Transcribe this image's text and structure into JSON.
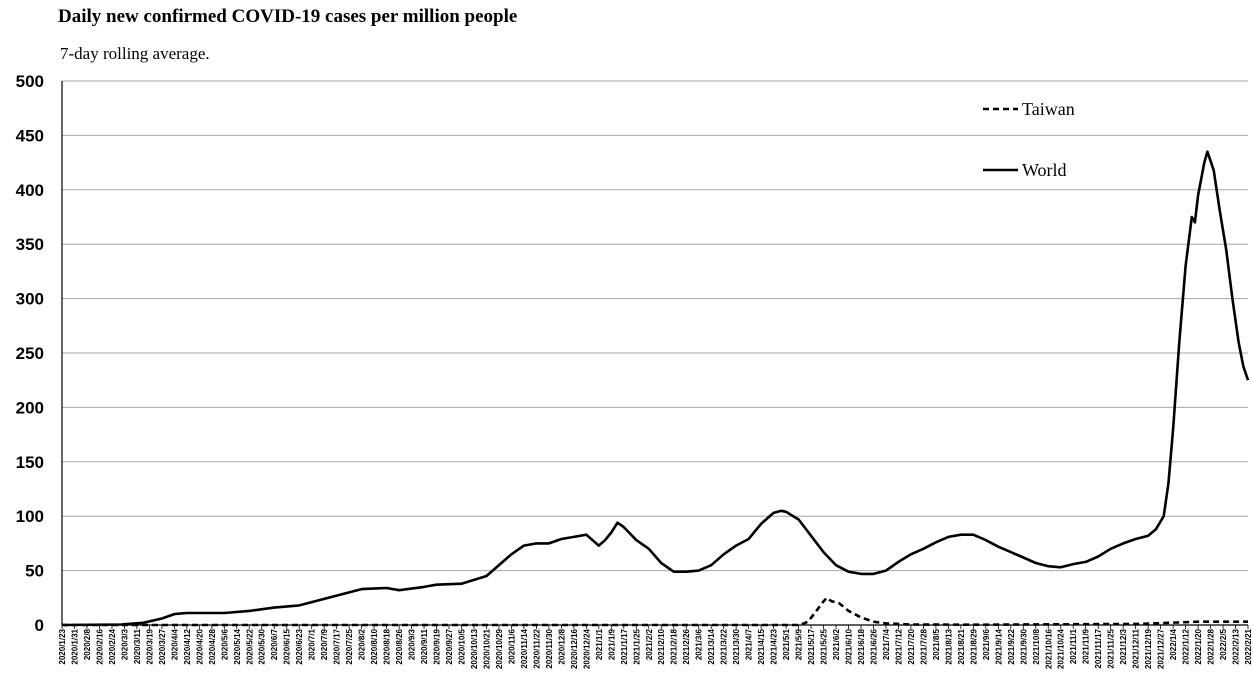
{
  "chart_data": {
    "type": "line",
    "title": "Daily new confirmed COVID-19 cases per million people",
    "subtitle": "7-day rolling average.",
    "xlabel": "",
    "ylabel": "",
    "ylim": [
      0,
      500
    ],
    "y_ticks": [
      0,
      50,
      100,
      150,
      200,
      250,
      300,
      350,
      400,
      450,
      500
    ],
    "grid": true,
    "legend_position": "top-right",
    "x_start": "2020-01-23",
    "x_end": "2022-02-21",
    "x_tick_labels": [
      "2020/1/23",
      "2020/1/31",
      "2020/2/8",
      "2020/2/16",
      "2020/2/24",
      "2020/3/3",
      "2020/3/11",
      "2020/3/19",
      "2020/3/27",
      "2020/4/4",
      "2020/4/12",
      "2020/4/20",
      "2020/4/28",
      "2020/5/6",
      "2020/5/14",
      "2020/5/22",
      "2020/5/30",
      "2020/6/7",
      "2020/6/15",
      "2020/6/23",
      "2020/7/1",
      "2020/7/9",
      "2020/7/17",
      "2020/7/25",
      "2020/8/2",
      "2020/8/10",
      "2020/8/18",
      "2020/8/26",
      "2020/9/3",
      "2020/9/11",
      "2020/9/19",
      "2020/9/27",
      "2020/10/5",
      "2020/10/13",
      "2020/10/21",
      "2020/10/29",
      "2020/11/6",
      "2020/11/14",
      "2020/11/22",
      "2020/11/30",
      "2020/12/8",
      "2020/12/16",
      "2020/12/24",
      "2021/1/1",
      "2021/1/9",
      "2021/1/17",
      "2021/1/25",
      "2021/2/2",
      "2021/2/10",
      "2021/2/18",
      "2021/2/26",
      "2021/3/6",
      "2021/3/14",
      "2021/3/22",
      "2021/3/30",
      "2021/4/7",
      "2021/4/15",
      "2021/4/23",
      "2021/5/1",
      "2021/5/9",
      "2021/5/17",
      "2021/5/25",
      "2021/6/2",
      "2021/6/10",
      "2021/6/18",
      "2021/6/26",
      "2021/7/4",
      "2021/7/12",
      "2021/7/20",
      "2021/7/28",
      "2021/8/5",
      "2021/8/13",
      "2021/8/21",
      "2021/8/29",
      "2021/9/6",
      "2021/9/14",
      "2021/9/22",
      "2021/9/30",
      "2021/10/8",
      "2021/10/16",
      "2021/10/24",
      "2021/11/1",
      "2021/11/9",
      "2021/11/17",
      "2021/11/25",
      "2021/12/3",
      "2021/12/11",
      "2021/12/19",
      "2021/12/27",
      "2022/1/4",
      "2022/1/12",
      "2022/1/20",
      "2022/1/28",
      "2022/2/5",
      "2022/2/13",
      "2022/2/21"
    ],
    "series": [
      {
        "name": "Taiwan",
        "style": "dashed",
        "color": "#000000",
        "points": [
          [
            "2020-01-23",
            0
          ],
          [
            "2021-05-10",
            0
          ],
          [
            "2021-05-15",
            3
          ],
          [
            "2021-05-20",
            12
          ],
          [
            "2021-05-24",
            20
          ],
          [
            "2021-05-27",
            25
          ],
          [
            "2021-05-30",
            22
          ],
          [
            "2021-06-04",
            20
          ],
          [
            "2021-06-10",
            13
          ],
          [
            "2021-06-18",
            7
          ],
          [
            "2021-06-26",
            3
          ],
          [
            "2021-07-04",
            1.5
          ],
          [
            "2021-07-20",
            0.5
          ],
          [
            "2021-09-01",
            0.3
          ],
          [
            "2021-12-15",
            1
          ],
          [
            "2022-01-01",
            2
          ],
          [
            "2022-01-20",
            3
          ],
          [
            "2022-02-21",
            3
          ]
        ]
      },
      {
        "name": "World",
        "style": "solid",
        "color": "#000000",
        "points": [
          [
            "2020-01-23",
            0
          ],
          [
            "2020-03-01",
            0.5
          ],
          [
            "2020-03-15",
            2
          ],
          [
            "2020-03-27",
            6
          ],
          [
            "2020-04-04",
            10
          ],
          [
            "2020-04-12",
            11
          ],
          [
            "2020-04-20",
            11
          ],
          [
            "2020-05-06",
            11
          ],
          [
            "2020-05-22",
            13
          ],
          [
            "2020-06-07",
            16
          ],
          [
            "2020-06-23",
            18
          ],
          [
            "2020-07-09",
            24
          ],
          [
            "2020-07-25",
            30
          ],
          [
            "2020-08-02",
            33
          ],
          [
            "2020-08-18",
            34
          ],
          [
            "2020-08-26",
            32
          ],
          [
            "2020-09-11",
            35
          ],
          [
            "2020-09-19",
            37
          ],
          [
            "2020-10-05",
            38
          ],
          [
            "2020-10-21",
            45
          ],
          [
            "2020-11-06",
            65
          ],
          [
            "2020-11-14",
            73
          ],
          [
            "2020-11-22",
            75
          ],
          [
            "2020-11-30",
            75
          ],
          [
            "2020-12-08",
            79
          ],
          [
            "2020-12-16",
            81
          ],
          [
            "2020-12-24",
            83
          ],
          [
            "2021-01-01",
            73
          ],
          [
            "2021-01-05",
            78
          ],
          [
            "2021-01-09",
            85
          ],
          [
            "2021-01-13",
            94
          ],
          [
            "2021-01-17",
            90
          ],
          [
            "2021-01-25",
            78
          ],
          [
            "2021-02-02",
            70
          ],
          [
            "2021-02-10",
            57
          ],
          [
            "2021-02-18",
            49
          ],
          [
            "2021-02-26",
            49
          ],
          [
            "2021-03-06",
            50
          ],
          [
            "2021-03-14",
            55
          ],
          [
            "2021-03-22",
            65
          ],
          [
            "2021-03-30",
            73
          ],
          [
            "2021-04-07",
            79
          ],
          [
            "2021-04-15",
            93
          ],
          [
            "2021-04-23",
            103
          ],
          [
            "2021-04-28",
            105
          ],
          [
            "2021-05-01",
            104
          ],
          [
            "2021-05-09",
            97
          ],
          [
            "2021-05-17",
            82
          ],
          [
            "2021-05-25",
            67
          ],
          [
            "2021-06-02",
            55
          ],
          [
            "2021-06-10",
            49
          ],
          [
            "2021-06-18",
            47
          ],
          [
            "2021-06-26",
            47
          ],
          [
            "2021-07-04",
            50
          ],
          [
            "2021-07-12",
            58
          ],
          [
            "2021-07-20",
            65
          ],
          [
            "2021-07-28",
            70
          ],
          [
            "2021-08-05",
            76
          ],
          [
            "2021-08-13",
            81
          ],
          [
            "2021-08-21",
            83
          ],
          [
            "2021-08-29",
            83
          ],
          [
            "2021-09-06",
            78
          ],
          [
            "2021-09-14",
            72
          ],
          [
            "2021-09-22",
            67
          ],
          [
            "2021-09-30",
            62
          ],
          [
            "2021-10-08",
            57
          ],
          [
            "2021-10-16",
            54
          ],
          [
            "2021-10-24",
            53
          ],
          [
            "2021-11-01",
            56
          ],
          [
            "2021-11-09",
            58
          ],
          [
            "2021-11-17",
            63
          ],
          [
            "2021-11-25",
            70
          ],
          [
            "2021-12-03",
            75
          ],
          [
            "2021-12-11",
            79
          ],
          [
            "2021-12-19",
            82
          ],
          [
            "2021-12-24",
            88
          ],
          [
            "2021-12-29",
            100
          ],
          [
            "2022-01-01",
            130
          ],
          [
            "2022-01-04",
            180
          ],
          [
            "2022-01-08",
            260
          ],
          [
            "2022-01-12",
            330
          ],
          [
            "2022-01-16",
            375
          ],
          [
            "2022-01-18",
            370
          ],
          [
            "2022-01-20",
            395
          ],
          [
            "2022-01-24",
            425
          ],
          [
            "2022-01-26",
            435
          ],
          [
            "2022-01-30",
            418
          ],
          [
            "2022-02-03",
            380
          ],
          [
            "2022-02-07",
            345
          ],
          [
            "2022-02-11",
            300
          ],
          [
            "2022-02-15",
            260
          ],
          [
            "2022-02-18",
            238
          ],
          [
            "2022-02-21",
            225
          ]
        ]
      }
    ]
  }
}
